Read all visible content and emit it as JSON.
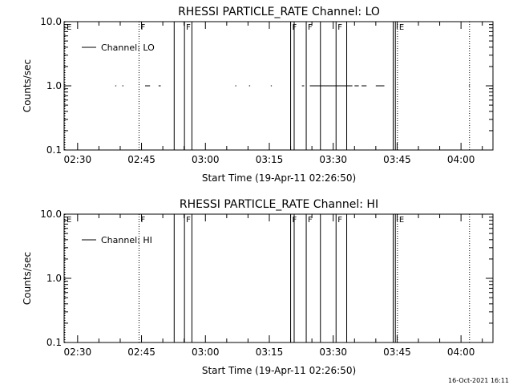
{
  "footer": {
    "date_stamp": "16-Oct-2021 16:11"
  },
  "chart_data": [
    {
      "type": "line",
      "title": "RHESSI PARTICLE_RATE Channel: LO",
      "xlabel": "Start Time (19-Apr-11 02:26:50)",
      "ylabel": "Counts/sec",
      "y_scale": "log",
      "ylim": [
        0.1,
        10.0
      ],
      "y_ticks": [
        "0.1",
        "1.0",
        "10.0"
      ],
      "xlim": [
        "02:26:50",
        "04:07:30"
      ],
      "x_ticks": [
        "02:30",
        "02:45",
        "03:00",
        "03:15",
        "03:30",
        "03:45",
        "04:00"
      ],
      "grid": false,
      "legend": {
        "placement": "top-left",
        "entries": [
          "Channel: LO"
        ]
      },
      "series": [
        {
          "name": "Channel: LO",
          "segments": [
            {
              "x": [
                "02:38:50",
                "02:39:05"
              ],
              "y": [
                1.0,
                1.0
              ]
            },
            {
              "x": [
                "02:40:30",
                "02:40:45"
              ],
              "y": [
                1.0,
                1.0
              ]
            },
            {
              "x": [
                "02:45:50",
                "02:47:00"
              ],
              "y": [
                1.0,
                1.0
              ]
            },
            {
              "x": [
                "02:49:00",
                "02:49:30"
              ],
              "y": [
                1.0,
                1.0
              ]
            },
            {
              "x": [
                "03:07:00",
                "03:07:15"
              ],
              "y": [
                1.0,
                1.0
              ]
            },
            {
              "x": [
                "03:10:15",
                "03:10:30"
              ],
              "y": [
                1.0,
                1.0
              ]
            },
            {
              "x": [
                "03:15:20",
                "03:15:35"
              ],
              "y": [
                1.0,
                1.0
              ]
            },
            {
              "x": [
                "03:22:40",
                "03:23:10"
              ],
              "y": [
                1.0,
                1.0
              ]
            },
            {
              "x": [
                "03:24:30",
                "03:34:30"
              ],
              "y": [
                1.0,
                1.0
              ]
            },
            {
              "x": [
                "03:35:00",
                "03:36:00"
              ],
              "y": [
                1.0,
                1.0
              ]
            },
            {
              "x": [
                "03:36:40",
                "03:37:50"
              ],
              "y": [
                1.0,
                1.0
              ]
            },
            {
              "x": [
                "03:40:00",
                "03:42:00"
              ],
              "y": [
                1.0,
                1.0
              ]
            },
            {
              "x": [
                "04:01:50",
                "04:02:05"
              ],
              "y": [
                1.0,
                1.0
              ]
            }
          ]
        }
      ],
      "annotations": {
        "flag_lines": [
          {
            "t": "02:26:50",
            "label": "E",
            "style": "dotted"
          },
          {
            "t": "02:44:25",
            "label": "F",
            "style": "dotted"
          },
          {
            "t": "02:52:40",
            "label": "",
            "style": "solid"
          },
          {
            "t": "02:55:05",
            "label": "F",
            "style": "solid"
          },
          {
            "t": "02:56:50",
            "label": "",
            "style": "solid"
          },
          {
            "t": "03:20:00",
            "label": "F",
            "style": "solid"
          },
          {
            "t": "03:20:50",
            "label": "",
            "style": "solid"
          },
          {
            "t": "03:23:40",
            "label": "F",
            "style": "solid"
          },
          {
            "t": "03:27:00",
            "label": "",
            "style": "solid"
          },
          {
            "t": "03:30:40",
            "label": "F",
            "style": "solid"
          },
          {
            "t": "03:33:10",
            "label": "",
            "style": "solid"
          },
          {
            "t": "03:44:05",
            "label": "",
            "style": "solid"
          },
          {
            "t": "03:44:35",
            "label": "",
            "style": "solid"
          },
          {
            "t": "03:45:05",
            "label": "E",
            "style": "dotted"
          },
          {
            "t": "04:02:00",
            "label": "",
            "style": "dotted"
          }
        ]
      }
    },
    {
      "type": "line",
      "title": "RHESSI PARTICLE_RATE Channel: HI",
      "xlabel": "Start Time (19-Apr-11 02:26:50)",
      "ylabel": "Counts/sec",
      "y_scale": "log",
      "ylim": [
        0.1,
        10.0
      ],
      "y_ticks": [
        "0.1",
        "1.0",
        "10.0"
      ],
      "xlim": [
        "02:26:50",
        "04:07:30"
      ],
      "x_ticks": [
        "02:30",
        "02:45",
        "03:00",
        "03:15",
        "03:30",
        "03:45",
        "04:00"
      ],
      "grid": false,
      "legend": {
        "placement": "top-left",
        "entries": [
          "Channel: HI"
        ]
      },
      "series": [
        {
          "name": "Channel: HI",
          "segments": []
        }
      ],
      "annotations": {
        "flag_lines": [
          {
            "t": "02:26:50",
            "label": "E",
            "style": "dotted"
          },
          {
            "t": "02:44:25",
            "label": "F",
            "style": "dotted"
          },
          {
            "t": "02:52:40",
            "label": "",
            "style": "solid"
          },
          {
            "t": "02:55:05",
            "label": "F",
            "style": "solid"
          },
          {
            "t": "02:56:50",
            "label": "",
            "style": "solid"
          },
          {
            "t": "03:20:00",
            "label": "F",
            "style": "solid"
          },
          {
            "t": "03:20:50",
            "label": "",
            "style": "solid"
          },
          {
            "t": "03:23:40",
            "label": "F",
            "style": "solid"
          },
          {
            "t": "03:27:00",
            "label": "",
            "style": "solid"
          },
          {
            "t": "03:30:40",
            "label": "F",
            "style": "solid"
          },
          {
            "t": "03:33:10",
            "label": "",
            "style": "solid"
          },
          {
            "t": "03:44:05",
            "label": "",
            "style": "solid"
          },
          {
            "t": "03:44:35",
            "label": "",
            "style": "solid"
          },
          {
            "t": "03:45:05",
            "label": "E",
            "style": "dotted"
          },
          {
            "t": "04:02:00",
            "label": "",
            "style": "dotted"
          }
        ]
      }
    }
  ]
}
